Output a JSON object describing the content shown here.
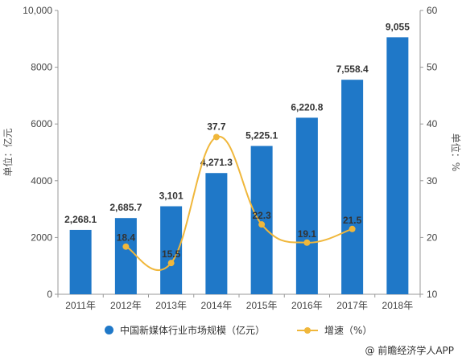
{
  "chart_data": {
    "type": "bar",
    "categories": [
      "2011年",
      "2012年",
      "2013年",
      "2014年",
      "2015年",
      "2016年",
      "2017年",
      "2018年"
    ],
    "series": [
      {
        "name": "中国新媒体行业市场规模（亿元）",
        "type": "bar",
        "axis": "left",
        "values": [
          2268.1,
          2685.7,
          3101,
          4271.3,
          5225.1,
          6220.8,
          7558.4,
          9055
        ],
        "labels": [
          "2,268.1",
          "2,685.7",
          "3,101",
          "4,271.3",
          "5,225.1",
          "6,220.8",
          "7,558.4",
          "9,055"
        ]
      },
      {
        "name": "增速（%）",
        "type": "line",
        "axis": "right",
        "smooth": true,
        "values": [
          null,
          18.4,
          15.5,
          37.7,
          22.3,
          19.1,
          21.5,
          null
        ],
        "labels": [
          "",
          "18.4",
          "15.5",
          "37.7",
          "22.3",
          "19.1",
          "21.5",
          ""
        ]
      }
    ],
    "ylabel": "单位：亿元",
    "y2label": "单位：%",
    "ylim": [
      0,
      10000
    ],
    "y2lim": [
      10,
      60
    ],
    "yticks": [
      "0",
      "2000",
      "4000",
      "6000",
      "8000",
      "10,000"
    ],
    "y2ticks": [
      "10",
      "20",
      "30",
      "40",
      "50",
      "60"
    ],
    "grid": false,
    "legend_position": "bottom",
    "colors": {
      "bar": "#1f78c8",
      "line": "#f0b73b"
    }
  },
  "legend": {
    "bar_label": "中国新媒体行业市场规模（亿元）",
    "line_label": "增速（%）"
  },
  "source": "@ 前瞻经济学人APP"
}
